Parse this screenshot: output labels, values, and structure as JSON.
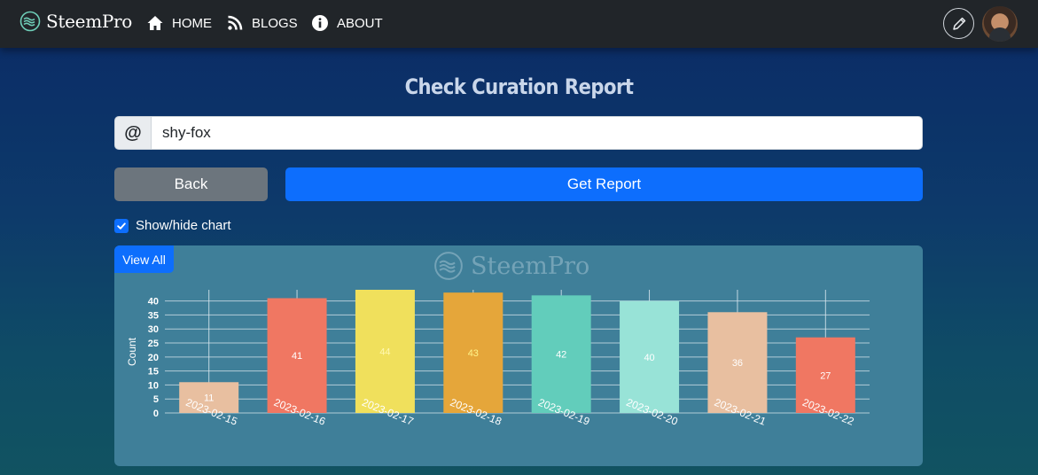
{
  "brand": {
    "name": "SteemPro"
  },
  "nav": {
    "home": "HOME",
    "blogs": "BLOGS",
    "about": "ABOUT"
  },
  "page": {
    "title": "Check Curation Report"
  },
  "search": {
    "prefix": "@",
    "value": "shy-fox"
  },
  "buttons": {
    "back": "Back",
    "get_report": "Get Report"
  },
  "toggle": {
    "label": "Show/hide chart",
    "checked": true
  },
  "chart_panel": {
    "view_all": "View All",
    "watermark": "SteemPro"
  },
  "colors": {
    "navbar": "#212529",
    "primary": "#0d6efd",
    "secondary": "#6c757d",
    "panel": "#3f7f99"
  },
  "chart_data": {
    "type": "bar",
    "categories": [
      "2023-02-15",
      "2023-02-16",
      "2023-02-17",
      "2023-02-18",
      "2023-02-19",
      "2023-02-20",
      "2023-02-21",
      "2023-02-22"
    ],
    "values": [
      11,
      41,
      44,
      43,
      42,
      40,
      36,
      27
    ],
    "ylabel": "Count",
    "yticks": [
      0,
      5,
      10,
      15,
      20,
      25,
      30,
      35,
      40
    ],
    "ylim": [
      0,
      44
    ],
    "grid": true,
    "bar_colors": [
      "#e8bfa0",
      "#f07762",
      "#f0e05c",
      "#e5a63a",
      "#62cdbb",
      "#98e3d7",
      "#e8bfa0",
      "#f07762"
    ],
    "label_colors": [
      "#ffffff",
      "#ffffff",
      "#fff8b0",
      "#fff48a",
      "#ffffff",
      "#ffffff",
      "#ffffff",
      "#ffffff"
    ]
  }
}
